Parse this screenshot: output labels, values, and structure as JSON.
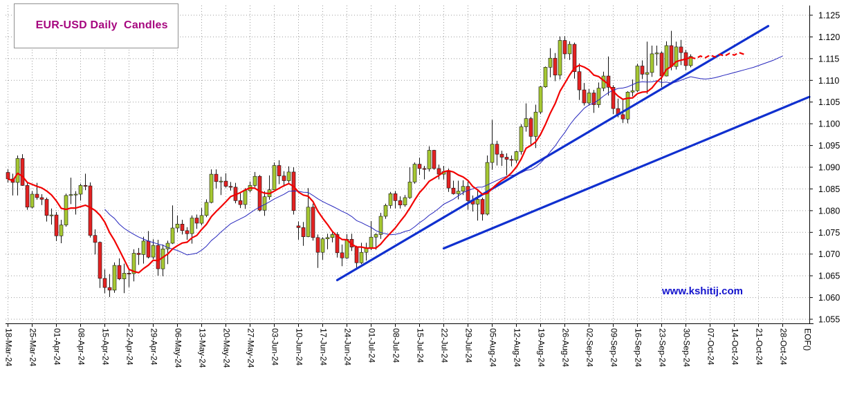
{
  "header": {
    "title": "EUR-USD Daily  Candles"
  },
  "watermark": {
    "text": "www.kshitij.com",
    "color": "#1313cd"
  },
  "chart_data": {
    "type": "candlestick",
    "title": "EUR-USD Daily Candles",
    "eof_label": "EOF()",
    "ylim": [
      1.055,
      1.125
    ],
    "y_ticks": [
      1.055,
      1.06,
      1.065,
      1.07,
      1.075,
      1.08,
      1.085,
      1.09,
      1.095,
      1.1,
      1.105,
      1.11,
      1.115,
      1.12,
      1.125
    ],
    "x_week_labels": [
      "18-Mar-24",
      "25-Mar-24",
      "01-Apr-24",
      "08-Apr-24",
      "15-Apr-24",
      "22-Apr-24",
      "29-Apr-24",
      "06-May-24",
      "13-May-24",
      "20-May-24",
      "27-May-24",
      "03-Jun-24",
      "10-Jun-24",
      "17-Jun-24",
      "24-Jun-24",
      "01-Jul-24",
      "08-Jul-24",
      "15-Jul-24",
      "22-Jul-24",
      "29-Jul-24",
      "05-Aug-24",
      "12-Aug-24",
      "19-Aug-24",
      "26-Aug-24",
      "02-Sep-24",
      "09-Sep-24",
      "16-Sep-24",
      "23-Sep-24",
      "30-Sep-24",
      "07-Oct-24",
      "14-Oct-24",
      "21-Oct-24",
      "28-Oct-24"
    ],
    "slots_total": 166,
    "grid": true,
    "candles_format": [
      "date",
      "open",
      "high",
      "low",
      "close"
    ],
    "candles": [
      [
        "18-Mar-24",
        1.0888,
        1.0895,
        1.0865,
        1.0873
      ],
      [
        "19-Mar-24",
        1.0873,
        1.0885,
        1.0835,
        1.0865
      ],
      [
        "20-Mar-24",
        1.0865,
        1.0927,
        1.0835,
        1.092
      ],
      [
        "21-Mar-24",
        1.092,
        1.093,
        1.0857,
        1.0858
      ],
      [
        "22-Mar-24",
        1.0858,
        1.0864,
        1.0802,
        1.0808
      ],
      [
        "25-Mar-24",
        1.0808,
        1.0845,
        1.0805,
        1.0838
      ],
      [
        "26-Mar-24",
        1.0838,
        1.0864,
        1.0825,
        1.083
      ],
      [
        "27-Mar-24",
        1.083,
        1.0838,
        1.0813,
        1.0826
      ],
      [
        "28-Mar-24",
        1.0826,
        1.083,
        1.0775,
        1.0789
      ],
      [
        "29-Mar-24",
        1.0789,
        1.0805,
        1.0768,
        1.079
      ],
      [
        "01-Apr-24",
        1.079,
        1.0797,
        1.073,
        1.0742
      ],
      [
        "02-Apr-24",
        1.0742,
        1.0779,
        1.0725,
        1.0767
      ],
      [
        "03-Apr-24",
        1.0767,
        1.0839,
        1.0763,
        1.0835
      ],
      [
        "04-Apr-24",
        1.0835,
        1.0876,
        1.0815,
        1.0837
      ],
      [
        "05-Apr-24",
        1.0837,
        1.0845,
        1.0791,
        1.0838
      ],
      [
        "08-Apr-24",
        1.0838,
        1.0862,
        1.0823,
        1.0858
      ],
      [
        "09-Apr-24",
        1.0858,
        1.0885,
        1.0847,
        1.0857
      ],
      [
        "10-Apr-24",
        1.0857,
        1.0865,
        1.0738,
        1.0743
      ],
      [
        "11-Apr-24",
        1.0743,
        1.0757,
        1.0699,
        1.0727
      ],
      [
        "12-Apr-24",
        1.0727,
        1.0729,
        1.0622,
        1.0644
      ],
      [
        "15-Apr-24",
        1.0644,
        1.0665,
        1.061,
        1.0623
      ],
      [
        "16-Apr-24",
        1.0623,
        1.0654,
        1.0601,
        1.0617
      ],
      [
        "17-Apr-24",
        1.0617,
        1.0681,
        1.0611,
        1.0674
      ],
      [
        "18-Apr-24",
        1.0674,
        1.069,
        1.064,
        1.0643
      ],
      [
        "19-Apr-24",
        1.0643,
        1.0678,
        1.061,
        1.0656
      ],
      [
        "22-Apr-24",
        1.0656,
        1.0667,
        1.0624,
        1.0655
      ],
      [
        "23-Apr-24",
        1.0655,
        1.0711,
        1.0637,
        1.0702
      ],
      [
        "24-Apr-24",
        1.0702,
        1.0714,
        1.0675,
        1.0699
      ],
      [
        "25-Apr-24",
        1.0699,
        1.074,
        1.0678,
        1.073
      ],
      [
        "26-Apr-24",
        1.073,
        1.0753,
        1.069,
        1.0693
      ],
      [
        "29-Apr-24",
        1.0693,
        1.0734,
        1.0688,
        1.072
      ],
      [
        "30-Apr-24",
        1.072,
        1.0733,
        1.065,
        1.0666
      ],
      [
        "01-May-24",
        1.0666,
        1.0722,
        1.0649,
        1.0712
      ],
      [
        "02-May-24",
        1.0712,
        1.0731,
        1.0677,
        1.0725
      ],
      [
        "03-May-24",
        1.0725,
        1.0812,
        1.0723,
        1.076
      ],
      [
        "06-May-24",
        1.076,
        1.0789,
        1.075,
        1.0769
      ],
      [
        "07-May-24",
        1.0769,
        1.0779,
        1.0745,
        1.0754
      ],
      [
        "08-May-24",
        1.0754,
        1.0762,
        1.0733,
        1.0747
      ],
      [
        "09-May-24",
        1.0747,
        1.0789,
        1.0724,
        1.0783
      ],
      [
        "10-May-24",
        1.0783,
        1.0791,
        1.0758,
        1.0771
      ],
      [
        "13-May-24",
        1.0771,
        1.0806,
        1.0766,
        1.0789
      ],
      [
        "14-May-24",
        1.0789,
        1.0826,
        1.0785,
        1.0819
      ],
      [
        "15-May-24",
        1.0819,
        1.0895,
        1.0817,
        1.0884
      ],
      [
        "16-May-24",
        1.0884,
        1.0895,
        1.0851,
        1.0867
      ],
      [
        "17-May-24",
        1.0867,
        1.0878,
        1.0836,
        1.0868
      ],
      [
        "20-May-24",
        1.0868,
        1.0886,
        1.0853,
        1.0856
      ],
      [
        "21-May-24",
        1.0856,
        1.0866,
        1.0846,
        1.0854
      ],
      [
        "22-May-24",
        1.0854,
        1.0864,
        1.0817,
        1.0823
      ],
      [
        "23-May-24",
        1.0823,
        1.084,
        1.0806,
        1.0814
      ],
      [
        "24-May-24",
        1.0814,
        1.0852,
        1.0804,
        1.0846
      ],
      [
        "27-May-24",
        1.0846,
        1.0867,
        1.0842,
        1.0858
      ],
      [
        "28-May-24",
        1.0858,
        1.0889,
        1.0854,
        1.0879
      ],
      [
        "29-May-24",
        1.0879,
        1.0882,
        1.0798,
        1.0801
      ],
      [
        "30-May-24",
        1.0801,
        1.0845,
        1.0788,
        1.0832
      ],
      [
        "31-May-24",
        1.0832,
        1.0881,
        1.0825,
        1.0848
      ],
      [
        "03-Jun-24",
        1.0848,
        1.0911,
        1.0848,
        1.0904
      ],
      [
        "04-Jun-24",
        1.0904,
        1.0916,
        1.0861,
        1.088
      ],
      [
        "05-Jun-24",
        1.088,
        1.0891,
        1.0855,
        1.0869
      ],
      [
        "06-Jun-24",
        1.0869,
        1.0902,
        1.0864,
        1.0889
      ],
      [
        "07-Jun-24",
        1.0889,
        1.09,
        1.0791,
        1.08
      ],
      [
        "10-Jun-24",
        1.0765,
        1.0775,
        1.0733,
        1.0761
      ],
      [
        "11-Jun-24",
        1.0761,
        1.0774,
        1.0719,
        1.074
      ],
      [
        "12-Jun-24",
        1.074,
        1.0852,
        1.0739,
        1.0808
      ],
      [
        "13-Jun-24",
        1.0808,
        1.0816,
        1.0731,
        1.0738
      ],
      [
        "14-Jun-24",
        1.0738,
        1.0745,
        1.0668,
        1.0704
      ],
      [
        "17-Jun-24",
        1.0704,
        1.0739,
        1.0687,
        1.0735
      ],
      [
        "18-Jun-24",
        1.0735,
        1.0747,
        1.0711,
        1.0738
      ],
      [
        "19-Jun-24",
        1.0738,
        1.0754,
        1.0727,
        1.0745
      ],
      [
        "20-Jun-24",
        1.0745,
        1.075,
        1.0692,
        1.0703
      ],
      [
        "21-Jun-24",
        1.0703,
        1.0722,
        1.0672,
        1.0691
      ],
      [
        "24-Jun-24",
        1.0691,
        1.0746,
        1.0689,
        1.0734
      ],
      [
        "25-Jun-24",
        1.0734,
        1.0747,
        1.0707,
        1.0716
      ],
      [
        "26-Jun-24",
        1.0716,
        1.0719,
        1.0666,
        1.068
      ],
      [
        "27-Jun-24",
        1.068,
        1.0726,
        1.0677,
        1.0704
      ],
      [
        "28-Jun-24",
        1.0704,
        1.0726,
        1.0685,
        1.0713
      ],
      [
        "01-Jul-24",
        1.0713,
        1.0776,
        1.0709,
        1.0739
      ],
      [
        "02-Jul-24",
        1.0739,
        1.0748,
        1.071,
        1.0745
      ],
      [
        "03-Jul-24",
        1.0745,
        1.0795,
        1.0735,
        1.0787
      ],
      [
        "04-Jul-24",
        1.0787,
        1.0816,
        1.0781,
        1.0812
      ],
      [
        "05-Jul-24",
        1.0812,
        1.0843,
        1.0805,
        1.0839
      ],
      [
        "08-Jul-24",
        1.0839,
        1.0845,
        1.0805,
        1.0823
      ],
      [
        "09-Jul-24",
        1.0823,
        1.0833,
        1.0805,
        1.0813
      ],
      [
        "10-Jul-24",
        1.0813,
        1.0836,
        1.0809,
        1.083
      ],
      [
        "11-Jul-24",
        1.083,
        1.09,
        1.0827,
        1.0866
      ],
      [
        "12-Jul-24",
        1.0866,
        1.0911,
        1.0862,
        1.0907
      ],
      [
        "15-Jul-24",
        1.0907,
        1.0922,
        1.0882,
        1.0897
      ],
      [
        "16-Jul-24",
        1.0897,
        1.0903,
        1.0872,
        1.0896
      ],
      [
        "17-Jul-24",
        1.0896,
        1.0948,
        1.089,
        1.0939
      ],
      [
        "18-Jul-24",
        1.0939,
        1.094,
        1.0894,
        1.0897
      ],
      [
        "19-Jul-24",
        1.0897,
        1.0906,
        1.0872,
        1.0884
      ],
      [
        "22-Jul-24",
        1.0884,
        1.0903,
        1.0872,
        1.089
      ],
      [
        "23-Jul-24",
        1.089,
        1.0897,
        1.0843,
        1.0852
      ],
      [
        "24-Jul-24",
        1.0852,
        1.0869,
        1.0837,
        1.0839
      ],
      [
        "25-Jul-24",
        1.0839,
        1.0869,
        1.0826,
        1.0845
      ],
      [
        "26-Jul-24",
        1.0845,
        1.087,
        1.0836,
        1.0856
      ],
      [
        "29-Jul-24",
        1.0856,
        1.087,
        1.0802,
        1.0823
      ],
      [
        "30-Jul-24",
        1.0823,
        1.0835,
        1.0798,
        1.0815
      ],
      [
        "31-Jul-24",
        1.0815,
        1.085,
        1.0777,
        1.0826
      ],
      [
        "01-Aug-24",
        1.0826,
        1.083,
        1.0777,
        1.0792
      ],
      [
        "02-Aug-24",
        1.0792,
        1.0927,
        1.0789,
        1.0911
      ],
      [
        "05-Aug-24",
        1.0911,
        1.1009,
        1.0894,
        1.0953
      ],
      [
        "06-Aug-24",
        1.0953,
        1.0961,
        1.0904,
        1.093
      ],
      [
        "07-Aug-24",
        1.093,
        1.0938,
        1.0903,
        1.0923
      ],
      [
        "08-Aug-24",
        1.0923,
        1.0932,
        1.0881,
        1.0918
      ],
      [
        "09-Aug-24",
        1.0918,
        1.0927,
        1.0902,
        1.0916
      ],
      [
        "12-Aug-24",
        1.0916,
        1.0938,
        1.091,
        1.0936
      ],
      [
        "13-Aug-24",
        1.0936,
        1.0999,
        1.0929,
        1.0993
      ],
      [
        "14-Aug-24",
        1.0993,
        1.1047,
        1.0982,
        1.1012
      ],
      [
        "15-Aug-24",
        1.1012,
        1.1016,
        1.095,
        1.0971
      ],
      [
        "16-Aug-24",
        1.0971,
        1.1044,
        1.0944,
        1.1027
      ],
      [
        "19-Aug-24",
        1.1027,
        1.1087,
        1.1022,
        1.1085
      ],
      [
        "20-Aug-24",
        1.1085,
        1.1132,
        1.1083,
        1.113
      ],
      [
        "21-Aug-24",
        1.113,
        1.1174,
        1.1107,
        1.1151
      ],
      [
        "22-Aug-24",
        1.1151,
        1.1163,
        1.1098,
        1.1112
      ],
      [
        "23-Aug-24",
        1.1112,
        1.1201,
        1.1102,
        1.1192
      ],
      [
        "26-Aug-24",
        1.1192,
        1.1202,
        1.1149,
        1.1161
      ],
      [
        "27-Aug-24",
        1.1161,
        1.119,
        1.1147,
        1.1183
      ],
      [
        "28-Aug-24",
        1.1183,
        1.1187,
        1.1104,
        1.112
      ],
      [
        "29-Aug-24",
        1.112,
        1.1139,
        1.1055,
        1.1078
      ],
      [
        "30-Aug-24",
        1.1078,
        1.1094,
        1.1042,
        1.1048
      ],
      [
        "02-Sep-24",
        1.1048,
        1.108,
        1.1042,
        1.1071
      ],
      [
        "03-Sep-24",
        1.1071,
        1.1078,
        1.1025,
        1.1044
      ],
      [
        "04-Sep-24",
        1.1044,
        1.1095,
        1.1037,
        1.1082
      ],
      [
        "05-Sep-24",
        1.1082,
        1.112,
        1.1075,
        1.111
      ],
      [
        "06-Sep-24",
        1.111,
        1.1155,
        1.1065,
        1.1084
      ],
      [
        "09-Sep-24",
        1.1084,
        1.1089,
        1.1022,
        1.1035
      ],
      [
        "10-Sep-24",
        1.1035,
        1.1058,
        1.1015,
        1.1021
      ],
      [
        "11-Sep-24",
        1.1021,
        1.1055,
        1.1002,
        1.1011
      ],
      [
        "12-Sep-24",
        1.1011,
        1.1075,
        1.1001,
        1.1073
      ],
      [
        "13-Sep-24",
        1.1073,
        1.1102,
        1.1063,
        1.1076
      ],
      [
        "16-Sep-24",
        1.1076,
        1.1138,
        1.1073,
        1.1133
      ],
      [
        "17-Sep-24",
        1.1133,
        1.1146,
        1.1103,
        1.1114
      ],
      [
        "18-Sep-24",
        1.1114,
        1.1189,
        1.1069,
        1.1118
      ],
      [
        "19-Sep-24",
        1.1118,
        1.118,
        1.1108,
        1.1161
      ],
      [
        "20-Sep-24",
        1.1161,
        1.118,
        1.1134,
        1.1163
      ],
      [
        "23-Sep-24",
        1.1163,
        1.1167,
        1.1084,
        1.111
      ],
      [
        "24-Sep-24",
        1.111,
        1.119,
        1.1109,
        1.118
      ],
      [
        "25-Sep-24",
        1.118,
        1.1214,
        1.1123,
        1.1132
      ],
      [
        "26-Sep-24",
        1.1132,
        1.1189,
        1.1125,
        1.1177
      ],
      [
        "27-Sep-24",
        1.1177,
        1.1193,
        1.1135,
        1.1164
      ],
      [
        "30-Sep-24",
        1.1164,
        1.117,
        1.1123,
        1.1134
      ],
      [
        "01-Oct-24",
        1.1134,
        1.116,
        1.113,
        1.1155
      ]
    ],
    "ma_fast": {
      "name": "fast-moving-average",
      "period": 9,
      "color": "#f20000",
      "width": 2.2,
      "dash": "7 4",
      "extension": [
        1.115,
        1.1156,
        1.1152,
        1.1158,
        1.1154,
        1.116,
        1.1156,
        1.1162,
        1.1158,
        1.1164,
        1.116
      ]
    },
    "ma_slow": {
      "name": "slow-moving-average",
      "period": 21,
      "color": "#2626bd",
      "width": 1,
      "dash": "",
      "extension": [
        1.1106,
        1.1104,
        1.1103,
        1.1104,
        1.1106,
        1.1109,
        1.1112,
        1.1115,
        1.1118,
        1.1121,
        1.1124,
        1.1127,
        1.113,
        1.1134,
        1.1138,
        1.1142,
        1.1146,
        1.1151,
        1.1156
      ]
    },
    "trendlines": [
      {
        "start_slot": 68,
        "start_price": 1.064,
        "end_slot": 157,
        "end_price": 1.1225
      },
      {
        "start_slot": 90,
        "start_price": 1.0713,
        "end_slot": 165.5,
        "end_price": 1.1062
      }
    ],
    "colors": {
      "bull": "#a6c832",
      "bear": "#e32222",
      "wick": "#111111",
      "grid": "#9b9b9b",
      "axis": "#000000",
      "trend": "#1030cf"
    }
  }
}
